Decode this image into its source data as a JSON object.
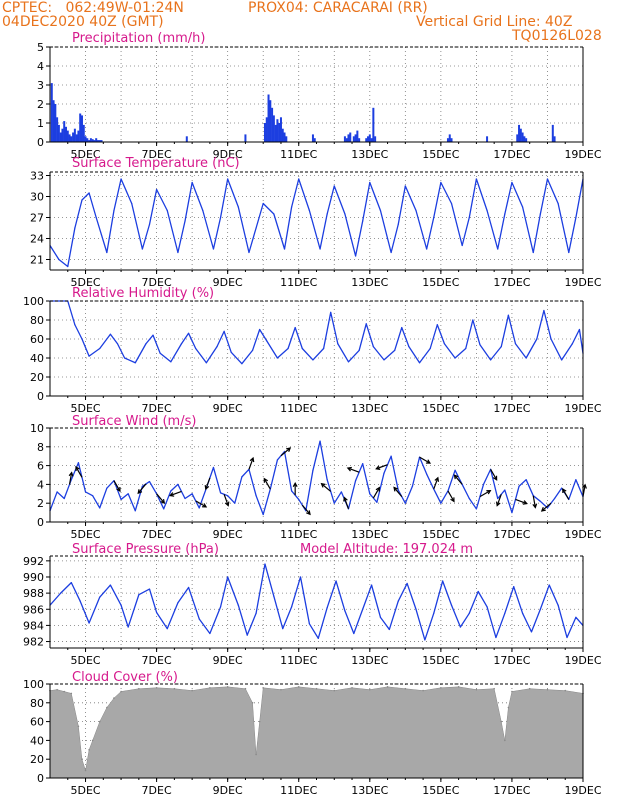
{
  "header": {
    "line1_left": "CPTEC:   062:49W-01:24N",
    "line1_right": "PROX04: CARACARAI (RR)",
    "line2_left": "04DEC2020 40Z (GMT)",
    "line2_right": "Vertical Grid Line: 40Z",
    "line3_right": "TQ0126L028"
  },
  "x_tick_labels": [
    "5DEC",
    "7DEC",
    "9DEC",
    "11DEC",
    "13DEC",
    "15DEC",
    "17DEC",
    "19DEC"
  ],
  "colors": {
    "title": "#d6198c",
    "header": "#e8731c",
    "line": "#1c3ee0",
    "bar": "#1c3ee0",
    "cloud": "#a8a8a8",
    "wind_arrow": "#000000"
  },
  "chart_data": [
    {
      "type": "bar",
      "title": "Precipitation (mm/h)",
      "ylim": [
        0,
        5
      ],
      "yticks": [
        0,
        1,
        2,
        3,
        4,
        5
      ],
      "x": [
        4.05,
        4.1,
        4.15,
        4.2,
        4.25,
        4.3,
        4.35,
        4.4,
        4.45,
        4.5,
        4.55,
        4.6,
        4.65,
        4.7,
        4.75,
        4.8,
        4.85,
        4.9,
        4.95,
        5.0,
        5.05,
        5.1,
        5.15,
        5.2,
        5.25,
        5.3,
        5.35,
        5.4,
        5.45,
        7.85,
        9.5,
        10.05,
        10.1,
        10.15,
        10.2,
        10.25,
        10.3,
        10.35,
        10.4,
        10.45,
        10.5,
        10.55,
        10.6,
        10.65,
        11.4,
        11.45,
        12.3,
        12.35,
        12.4,
        12.45,
        12.55,
        12.6,
        12.65,
        12.7,
        12.9,
        12.95,
        13.0,
        13.05,
        13.1,
        13.15,
        15.2,
        15.25,
        15.3,
        16.3,
        17.15,
        17.2,
        17.25,
        17.3,
        17.35,
        17.4,
        18.15,
        18.2
      ],
      "values": [
        3.1,
        2.2,
        2.0,
        1.3,
        0.9,
        0.5,
        0.7,
        1.1,
        0.8,
        0.6,
        0.4,
        0.3,
        0.5,
        0.7,
        0.4,
        0.6,
        1.5,
        1.4,
        0.9,
        0.3,
        0.2,
        0.1,
        0.2,
        0.15,
        0.1,
        0.2,
        0.1,
        0.1,
        0.1,
        0.3,
        0.4,
        1.0,
        1.3,
        2.5,
        2.2,
        1.8,
        1.4,
        0.9,
        1.2,
        1.0,
        1.3,
        0.7,
        0.5,
        0.3,
        0.4,
        0.2,
        0.3,
        0.2,
        0.4,
        0.5,
        0.3,
        0.4,
        0.6,
        0.2,
        0.2,
        0.3,
        0.4,
        0.2,
        1.8,
        0.3,
        0.2,
        0.4,
        0.2,
        0.3,
        0.4,
        0.9,
        0.7,
        0.5,
        0.3,
        0.2,
        0.9,
        0.3
      ]
    },
    {
      "type": "line",
      "title": "Surface Temperature (nC)",
      "ylim": [
        19.5,
        33.5
      ],
      "yticks": [
        21,
        24,
        27,
        30,
        33
      ],
      "x": [
        4.0,
        4.25,
        4.5,
        4.7,
        4.9,
        5.1,
        5.3,
        5.6,
        5.8,
        6.0,
        6.3,
        6.6,
        6.8,
        7.0,
        7.3,
        7.6,
        7.8,
        8.0,
        8.3,
        8.6,
        8.8,
        9.0,
        9.3,
        9.6,
        9.8,
        10.0,
        10.3,
        10.6,
        10.8,
        11.0,
        11.3,
        11.6,
        11.8,
        12.0,
        12.3,
        12.6,
        12.8,
        13.0,
        13.3,
        13.6,
        13.8,
        14.0,
        14.3,
        14.6,
        14.8,
        15.0,
        15.3,
        15.6,
        15.8,
        16.0,
        16.3,
        16.6,
        16.8,
        17.0,
        17.3,
        17.6,
        17.8,
        18.0,
        18.3,
        18.6,
        18.8,
        19.0
      ],
      "values": [
        23.0,
        21.0,
        20.0,
        25.5,
        29.5,
        30.5,
        27.0,
        22.0,
        28.0,
        32.5,
        29.0,
        22.5,
        26.0,
        31.0,
        28.0,
        22.0,
        26.5,
        32.0,
        28.0,
        22.5,
        27.0,
        32.5,
        28.5,
        22.0,
        25.5,
        29.0,
        27.5,
        22.5,
        28.5,
        32.5,
        28.0,
        22.5,
        27.5,
        31.5,
        27.5,
        21.5,
        26.5,
        32.0,
        28.0,
        22.0,
        26.0,
        31.5,
        28.0,
        22.5,
        27.0,
        32.0,
        29.0,
        23.0,
        27.0,
        32.5,
        28.0,
        22.5,
        27.5,
        32.0,
        28.5,
        22.0,
        27.5,
        32.5,
        29.0,
        22.0,
        27.0,
        32.5
      ]
    },
    {
      "type": "line",
      "title": "Relative Humidity (%)",
      "ylim": [
        0,
        100
      ],
      "yticks": [
        0,
        20,
        40,
        60,
        80,
        100
      ],
      "x": [
        4.0,
        4.25,
        4.5,
        4.7,
        4.9,
        5.1,
        5.4,
        5.7,
        5.9,
        6.1,
        6.4,
        6.7,
        6.9,
        7.1,
        7.4,
        7.7,
        7.9,
        8.1,
        8.4,
        8.7,
        8.9,
        9.1,
        9.4,
        9.7,
        9.9,
        10.1,
        10.4,
        10.7,
        10.9,
        11.1,
        11.4,
        11.7,
        11.9,
        12.1,
        12.4,
        12.7,
        12.9,
        13.1,
        13.4,
        13.7,
        13.9,
        14.1,
        14.4,
        14.7,
        14.9,
        15.1,
        15.4,
        15.7,
        15.9,
        16.1,
        16.4,
        16.7,
        16.9,
        17.1,
        17.4,
        17.7,
        17.9,
        18.1,
        18.4,
        18.7,
        18.9,
        19.0
      ],
      "values": [
        100,
        100,
        100,
        75,
        60,
        42,
        50,
        65,
        55,
        40,
        35,
        55,
        64,
        45,
        36,
        55,
        66,
        50,
        35,
        52,
        68,
        46,
        34,
        48,
        70,
        58,
        40,
        50,
        72,
        50,
        38,
        50,
        88,
        55,
        36,
        48,
        76,
        52,
        38,
        48,
        72,
        52,
        35,
        50,
        75,
        55,
        40,
        50,
        80,
        54,
        38,
        52,
        85,
        55,
        40,
        60,
        90,
        60,
        38,
        55,
        70,
        45
      ]
    },
    {
      "type": "line",
      "title": "Surface Wind (m/s)",
      "ylim": [
        0,
        10
      ],
      "yticks": [
        0,
        2,
        4,
        6,
        8,
        10
      ],
      "x": [
        4.0,
        4.2,
        4.4,
        4.6,
        4.8,
        5.0,
        5.2,
        5.4,
        5.6,
        5.8,
        6.0,
        6.2,
        6.4,
        6.6,
        6.8,
        7.0,
        7.2,
        7.4,
        7.6,
        7.8,
        8.0,
        8.2,
        8.4,
        8.6,
        8.8,
        9.0,
        9.2,
        9.4,
        9.6,
        9.8,
        10.0,
        10.2,
        10.4,
        10.6,
        10.8,
        11.0,
        11.2,
        11.4,
        11.6,
        11.8,
        12.0,
        12.2,
        12.4,
        12.6,
        12.8,
        13.0,
        13.2,
        13.4,
        13.6,
        13.8,
        14.0,
        14.2,
        14.4,
        14.6,
        14.8,
        15.0,
        15.2,
        15.4,
        15.6,
        15.8,
        16.0,
        16.2,
        16.4,
        16.6,
        16.8,
        17.0,
        17.2,
        17.4,
        17.6,
        17.8,
        18.0,
        18.2,
        18.4,
        18.6,
        18.8,
        19.0
      ],
      "values": [
        1.2,
        3.2,
        2.5,
        4.5,
        6.3,
        3.2,
        2.8,
        1.5,
        3.6,
        4.4,
        2.4,
        3.0,
        1.2,
        3.8,
        4.3,
        3.0,
        1.4,
        3.3,
        4.0,
        2.5,
        3.0,
        1.5,
        3.6,
        5.8,
        3.1,
        2.8,
        2.0,
        4.8,
        5.6,
        2.8,
        0.8,
        3.5,
        6.6,
        7.5,
        3.3,
        2.4,
        1.2,
        5.5,
        8.6,
        4.5,
        2.0,
        3.2,
        1.4,
        4.4,
        6.2,
        3.0,
        2.1,
        5.2,
        7.0,
        3.4,
        2.0,
        3.8,
        6.9,
        5.1,
        3.5,
        2.0,
        3.3,
        5.5,
        4.0,
        2.5,
        1.4,
        4.0,
        5.6,
        2.5,
        3.4,
        1.0,
        3.8,
        4.5,
        2.8,
        2.2,
        1.5,
        2.5,
        3.6,
        2.4,
        4.5,
        2.7
      ],
      "arrows_x": [
        4.55,
        4.9,
        5.8,
        6.7,
        7.0,
        7.7,
        8.1,
        8.5,
        8.9,
        9.6,
        10.2,
        10.5,
        10.9,
        11.1,
        11.9,
        12.4,
        12.7,
        13.1,
        13.5,
        13.9,
        14.4,
        14.8,
        15.2,
        15.6,
        16.1,
        16.4,
        16.7,
        17.1,
        17.6,
        18.1,
        18.6,
        19.0
      ],
      "arrows_dir_deg": [
        80,
        120,
        300,
        230,
        310,
        200,
        330,
        250,
        290,
        70,
        120,
        40,
        90,
        310,
        140,
        110,
        160,
        60,
        200,
        130,
        330,
        70,
        300,
        130,
        30,
        300,
        250,
        340,
        280,
        220,
        120,
        80
      ]
    },
    {
      "type": "line",
      "title": "Surface Pressure (hPa)",
      "subtitle": "Model Altitude: 197.024 m",
      "ylim": [
        981.2,
        992.6
      ],
      "yticks": [
        982,
        984,
        986,
        988,
        990,
        992
      ],
      "x": [
        4.0,
        4.3,
        4.6,
        4.85,
        5.1,
        5.4,
        5.7,
        6.0,
        6.2,
        6.5,
        6.8,
        7.0,
        7.3,
        7.6,
        7.9,
        8.2,
        8.5,
        8.8,
        9.0,
        9.3,
        9.55,
        9.8,
        10.05,
        10.3,
        10.55,
        10.8,
        11.05,
        11.3,
        11.55,
        11.8,
        12.05,
        12.3,
        12.55,
        12.8,
        13.05,
        13.3,
        13.55,
        13.8,
        14.05,
        14.3,
        14.55,
        14.8,
        15.05,
        15.3,
        15.55,
        15.8,
        16.05,
        16.3,
        16.55,
        16.8,
        17.05,
        17.3,
        17.55,
        17.8,
        18.05,
        18.3,
        18.55,
        18.8,
        19.0
      ],
      "values": [
        986.5,
        988.0,
        989.3,
        987.0,
        984.3,
        987.5,
        989.0,
        986.5,
        983.8,
        987.8,
        988.5,
        985.6,
        983.6,
        986.8,
        988.7,
        984.8,
        983.0,
        986.3,
        990.0,
        986.5,
        982.8,
        985.5,
        991.6,
        987.6,
        983.6,
        986.3,
        990.0,
        984.2,
        982.4,
        986.2,
        989.5,
        985.8,
        983.0,
        986.0,
        989.0,
        985.0,
        983.5,
        987.0,
        989.2,
        986.0,
        982.2,
        985.5,
        989.5,
        986.5,
        983.8,
        985.5,
        988.2,
        986.3,
        982.5,
        985.5,
        988.8,
        985.5,
        983.2,
        986.0,
        989.0,
        986.5,
        982.5,
        985.0,
        984.0
      ]
    },
    {
      "type": "area",
      "title": "Cloud Cover (%)",
      "ylim": [
        0,
        100
      ],
      "yticks": [
        0,
        20,
        40,
        60,
        80,
        100
      ],
      "x": [
        4.0,
        4.2,
        4.4,
        4.6,
        4.8,
        4.9,
        5.0,
        5.1,
        5.2,
        5.4,
        5.6,
        5.8,
        6.0,
        6.5,
        7.0,
        7.5,
        8.0,
        8.5,
        9.0,
        9.5,
        9.7,
        9.8,
        9.9,
        10.0,
        10.5,
        11.0,
        11.5,
        12.0,
        12.5,
        13.0,
        13.5,
        14.0,
        14.5,
        15.0,
        15.5,
        16.0,
        16.5,
        16.7,
        16.8,
        16.9,
        17.0,
        17.5,
        18.0,
        18.5,
        19.0
      ],
      "values": [
        93,
        94,
        92,
        90,
        55,
        20,
        8,
        30,
        40,
        60,
        75,
        85,
        92,
        95,
        96,
        95,
        93,
        96,
        97,
        95,
        80,
        25,
        60,
        96,
        94,
        97,
        95,
        93,
        96,
        94,
        97,
        95,
        93,
        96,
        97,
        94,
        95,
        60,
        40,
        75,
        92,
        95,
        94,
        93,
        90
      ]
    }
  ]
}
